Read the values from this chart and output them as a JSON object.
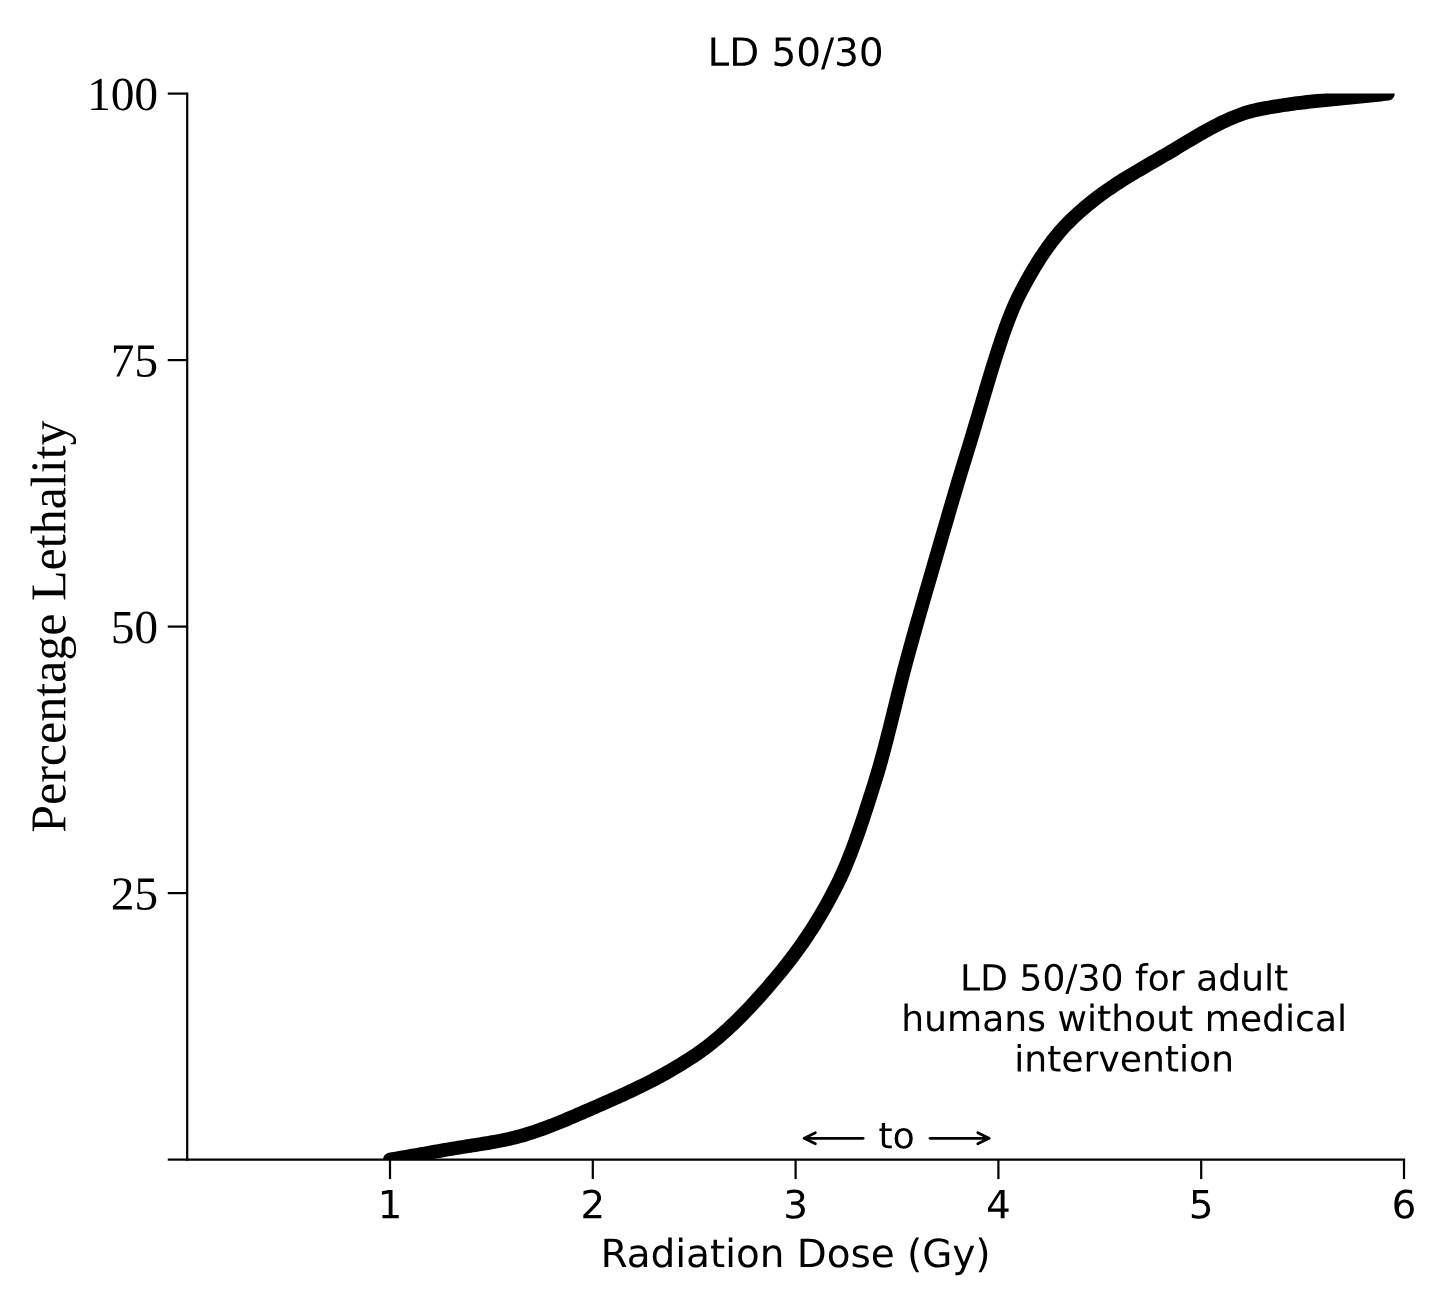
{
  "chart_data": {
    "type": "line",
    "title": "LD 50/30",
    "xlabel": "Radiation Dose (Gy)",
    "ylabel": "Percentage Lethality",
    "x": [
      1,
      1.3,
      1.6,
      2.02,
      2.52,
      2.9,
      3.21,
      3.4,
      3.55,
      3.7,
      3.84,
      4.1,
      4.35,
      4.8,
      5.28,
      5.92
    ],
    "series": [
      {
        "color": "#000000",
        "values": [
          0,
          1,
          2,
          5,
          10,
          17,
          26,
          36,
          47,
          57,
          66,
          81,
          88,
          94,
          98.5,
          100
        ]
      }
    ],
    "xlim": [
      0,
      6
    ],
    "xticks": [
      1,
      2,
      3,
      4,
      5,
      6
    ],
    "ylim": [
      0,
      100
    ],
    "yticks": [
      {
        "value": 0,
        "label": null
      },
      25,
      50,
      75,
      100
    ],
    "annotations": [
      "LD 50/30 for adult humans without medical intervention",
      "to"
    ],
    "grid": false,
    "legend": false,
    "marker": "none",
    "line_style": "solid"
  }
}
